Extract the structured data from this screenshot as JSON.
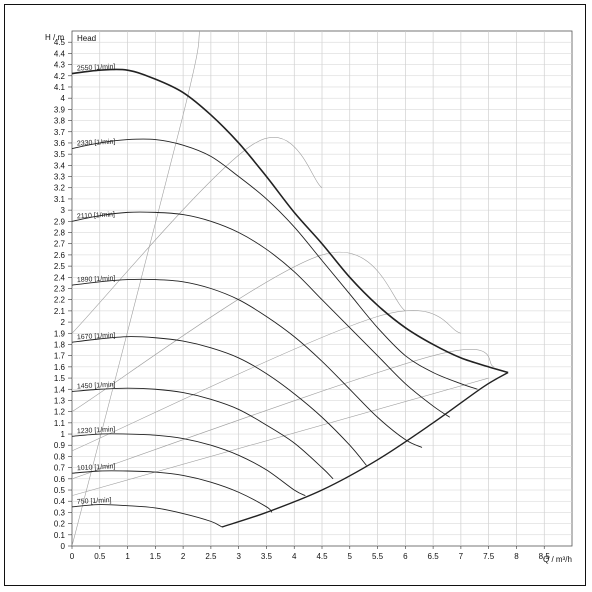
{
  "chart_data": {
    "type": "line",
    "title": "",
    "legend_label": "Head",
    "xlabel": "Q / m³/h",
    "ylabel": "H / m",
    "xlim": [
      0,
      9
    ],
    "ylim": [
      0,
      4.6
    ],
    "x_ticks": [
      "0",
      "0.5",
      "1",
      "1.5",
      "2",
      "2.5",
      "3",
      "3.5",
      "4",
      "4.5",
      "5",
      "5.5",
      "6",
      "6.5",
      "7",
      "7.5",
      "8",
      "8.5"
    ],
    "y_ticks": [
      "0",
      "0.1",
      "0.2",
      "0.3",
      "0.4",
      "0.5",
      "0.6",
      "0.7",
      "0.8",
      "0.9",
      "1",
      "1.1",
      "1.2",
      "1.3",
      "1.4",
      "1.5",
      "1.6",
      "1.7",
      "1.8",
      "1.9",
      "2",
      "2.1",
      "2.2",
      "2.3",
      "2.4",
      "2.5",
      "2.6",
      "2.7",
      "2.8",
      "2.9",
      "3",
      "3.1",
      "3.2",
      "3.3",
      "3.4",
      "3.5",
      "3.6",
      "3.7",
      "3.8",
      "3.9",
      "4",
      "4.1",
      "4.2",
      "4.3",
      "4.4",
      "4.5"
    ],
    "grid": true,
    "series": [
      {
        "name": "2550 [1/min]",
        "points": [
          [
            0,
            4.22
          ],
          [
            0.5,
            4.25
          ],
          [
            1,
            4.25
          ],
          [
            1.5,
            4.17
          ],
          [
            2,
            4.05
          ],
          [
            2.5,
            3.85
          ],
          [
            3,
            3.6
          ],
          [
            3.5,
            3.3
          ],
          [
            4,
            2.98
          ],
          [
            4.5,
            2.7
          ],
          [
            5,
            2.4
          ],
          [
            5.5,
            2.15
          ],
          [
            6,
            1.95
          ],
          [
            6.5,
            1.8
          ],
          [
            7,
            1.68
          ],
          [
            7.5,
            1.6
          ],
          [
            7.85,
            1.55
          ]
        ]
      },
      {
        "name": "2330 [1/min]",
        "points": [
          [
            0,
            3.55
          ],
          [
            0.5,
            3.6
          ],
          [
            1,
            3.63
          ],
          [
            1.5,
            3.63
          ],
          [
            2,
            3.58
          ],
          [
            2.5,
            3.48
          ],
          [
            3,
            3.3
          ],
          [
            3.5,
            3.1
          ],
          [
            4,
            2.85
          ],
          [
            4.5,
            2.55
          ],
          [
            5,
            2.25
          ],
          [
            5.5,
            1.95
          ],
          [
            6,
            1.7
          ],
          [
            6.5,
            1.55
          ],
          [
            7,
            1.45
          ],
          [
            7.3,
            1.4
          ]
        ]
      },
      {
        "name": "2110 [1/min]",
        "points": [
          [
            0,
            2.9
          ],
          [
            0.5,
            2.95
          ],
          [
            1,
            2.98
          ],
          [
            1.5,
            2.98
          ],
          [
            2,
            2.96
          ],
          [
            2.5,
            2.9
          ],
          [
            3,
            2.8
          ],
          [
            3.5,
            2.65
          ],
          [
            4,
            2.45
          ],
          [
            4.5,
            2.2
          ],
          [
            5,
            1.95
          ],
          [
            5.5,
            1.7
          ],
          [
            6,
            1.45
          ],
          [
            6.5,
            1.25
          ],
          [
            6.8,
            1.15
          ]
        ]
      },
      {
        "name": "1890 [1/min]",
        "points": [
          [
            0,
            2.33
          ],
          [
            0.5,
            2.36
          ],
          [
            1,
            2.38
          ],
          [
            1.5,
            2.38
          ],
          [
            2,
            2.36
          ],
          [
            2.5,
            2.3
          ],
          [
            3,
            2.2
          ],
          [
            3.5,
            2.05
          ],
          [
            4,
            1.87
          ],
          [
            4.5,
            1.65
          ],
          [
            5,
            1.4
          ],
          [
            5.5,
            1.15
          ],
          [
            6,
            0.95
          ],
          [
            6.3,
            0.88
          ]
        ]
      },
      {
        "name": "1670 [1/min]",
        "points": [
          [
            0,
            1.82
          ],
          [
            0.5,
            1.85
          ],
          [
            1,
            1.87
          ],
          [
            1.5,
            1.86
          ],
          [
            2,
            1.83
          ],
          [
            2.5,
            1.77
          ],
          [
            3,
            1.68
          ],
          [
            3.5,
            1.54
          ],
          [
            4,
            1.36
          ],
          [
            4.5,
            1.15
          ],
          [
            5,
            0.9
          ],
          [
            5.3,
            0.72
          ]
        ]
      },
      {
        "name": "1450 [1/min]",
        "points": [
          [
            0,
            1.38
          ],
          [
            0.5,
            1.4
          ],
          [
            1,
            1.41
          ],
          [
            1.5,
            1.4
          ],
          [
            2,
            1.37
          ],
          [
            2.5,
            1.31
          ],
          [
            3,
            1.22
          ],
          [
            3.5,
            1.08
          ],
          [
            4,
            0.92
          ],
          [
            4.5,
            0.7
          ],
          [
            4.7,
            0.6
          ]
        ]
      },
      {
        "name": "1230 [1/min]",
        "points": [
          [
            0,
            0.98
          ],
          [
            0.5,
            1.0
          ],
          [
            1,
            1.0
          ],
          [
            1.5,
            0.99
          ],
          [
            2,
            0.96
          ],
          [
            2.5,
            0.9
          ],
          [
            3,
            0.81
          ],
          [
            3.5,
            0.68
          ],
          [
            4,
            0.5
          ],
          [
            4.2,
            0.45
          ]
        ]
      },
      {
        "name": "1010 [1/min]",
        "points": [
          [
            0,
            0.65
          ],
          [
            0.5,
            0.67
          ],
          [
            1,
            0.67
          ],
          [
            1.5,
            0.66
          ],
          [
            2,
            0.63
          ],
          [
            2.5,
            0.57
          ],
          [
            3,
            0.48
          ],
          [
            3.5,
            0.35
          ],
          [
            3.6,
            0.3
          ]
        ]
      },
      {
        "name": "750 [1/min]",
        "points": [
          [
            0,
            0.35
          ],
          [
            0.5,
            0.37
          ],
          [
            1,
            0.36
          ],
          [
            1.5,
            0.34
          ],
          [
            2,
            0.29
          ],
          [
            2.5,
            0.22
          ],
          [
            2.7,
            0.17
          ]
        ]
      }
    ],
    "envelope_right": [
      [
        2.7,
        0.17
      ],
      [
        3.5,
        0.3
      ],
      [
        4.5,
        0.5
      ],
      [
        5.5,
        0.77
      ],
      [
        6.5,
        1.1
      ],
      [
        7.4,
        1.42
      ],
      [
        7.85,
        1.55
      ]
    ],
    "system_curves": [
      [
        [
          0,
          0
        ],
        [
          2,
          3.85
        ],
        [
          2.3,
          4.6
        ]
      ],
      [
        [
          0,
          1.9
        ],
        [
          3.3,
          3.6
        ],
        [
          4.5,
          3.2
        ]
      ],
      [
        [
          0,
          1.2
        ],
        [
          4.5,
          2.6
        ],
        [
          6,
          2.1
        ]
      ],
      [
        [
          0,
          0.85
        ],
        [
          5.5,
          2.05
        ],
        [
          7,
          1.9
        ]
      ],
      [
        [
          0,
          0.6
        ],
        [
          6.5,
          1.7
        ],
        [
          7.6,
          1.6
        ]
      ],
      [
        [
          0,
          0.45
        ],
        [
          7.5,
          1.5
        ]
      ]
    ]
  }
}
